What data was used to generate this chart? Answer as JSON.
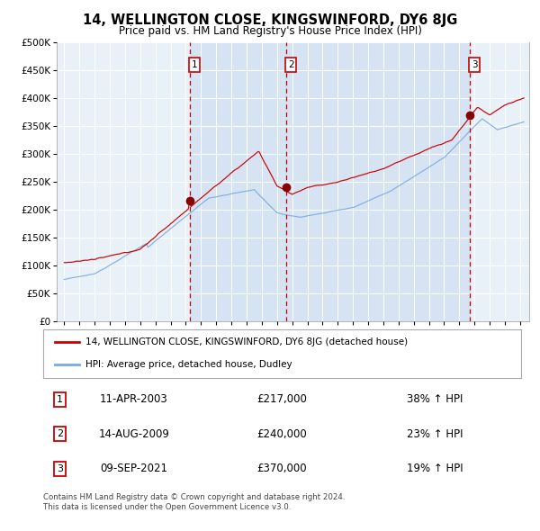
{
  "title": "14, WELLINGTON CLOSE, KINGSWINFORD, DY6 8JG",
  "subtitle": "Price paid vs. HM Land Registry's House Price Index (HPI)",
  "legend_line1": "14, WELLINGTON CLOSE, KINGSWINFORD, DY6 8JG (detached house)",
  "legend_line2": "HPI: Average price, detached house, Dudley",
  "footer1": "Contains HM Land Registry data © Crown copyright and database right 2024.",
  "footer2": "This data is licensed under the Open Government Licence v3.0.",
  "transactions": [
    {
      "num": 1,
      "date": "11-APR-2003",
      "price": "£217,000",
      "hpi": "38% ↑ HPI",
      "year": 2003.28
    },
    {
      "num": 2,
      "date": "14-AUG-2009",
      "price": "£240,000",
      "hpi": "23% ↑ HPI",
      "year": 2009.62
    },
    {
      "num": 3,
      "date": "09-SEP-2021",
      "price": "£370,000",
      "hpi": "19% ↑ HPI",
      "year": 2021.69
    }
  ],
  "sale_marker_values": [
    217000,
    240000,
    370000
  ],
  "sale_marker_years": [
    2003.28,
    2009.62,
    2021.69
  ],
  "red_line_color": "#cc0000",
  "blue_line_color": "#7aaadd",
  "plot_bg": "#e8f0f8",
  "grid_color": "#ffffff",
  "dashed_line_color": "#cc0000",
  "marker_color": "#880000",
  "shade_color": "#c8daf0",
  "ylim": [
    0,
    500000
  ],
  "yticks": [
    0,
    50000,
    100000,
    150000,
    200000,
    250000,
    300000,
    350000,
    400000,
    450000,
    500000
  ],
  "xlim_start": 1994.5,
  "xlim_end": 2025.6
}
